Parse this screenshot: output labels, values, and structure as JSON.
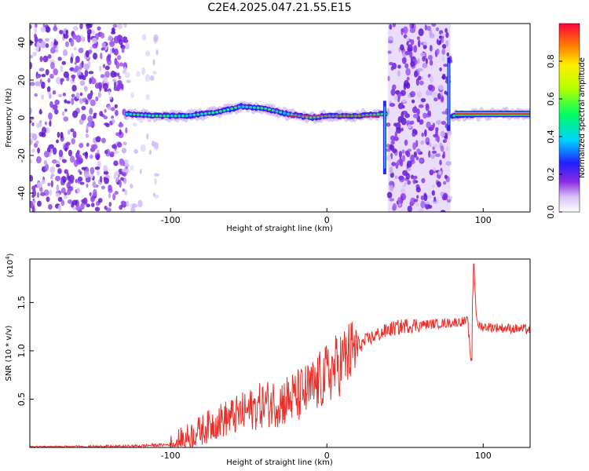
{
  "title": "C2E4.2025.047.21.55.E15",
  "chart_data": [
    {
      "type": "heatmap",
      "xlabel": "Height of straight line (km)",
      "ylabel": "Frequency (Hz)",
      "xlim": [
        -190,
        130
      ],
      "ylim": [
        -50,
        50
      ],
      "x_ticks": [
        -100,
        0,
        100
      ],
      "y_ticks": [
        -40,
        -20,
        0,
        20,
        40
      ],
      "noise_regions": [
        {
          "x": [
            -190,
            -128
          ],
          "f": [
            -50,
            50
          ],
          "level": "dense"
        },
        {
          "x": [
            -128,
            -108
          ],
          "f": [
            -50,
            50
          ],
          "level": "faint"
        },
        {
          "x": [
            39,
            79
          ],
          "f": [
            -50,
            50
          ],
          "level": "dense"
        }
      ],
      "signal_track": [
        {
          "x": -128,
          "f": 2
        },
        {
          "x": -110,
          "f": 1
        },
        {
          "x": -90,
          "f": 1
        },
        {
          "x": -70,
          "f": 3
        },
        {
          "x": -55,
          "f": 6
        },
        {
          "x": -40,
          "f": 5
        },
        {
          "x": -25,
          "f": 2
        },
        {
          "x": -10,
          "f": 0
        },
        {
          "x": 0,
          "f": 1
        },
        {
          "x": 20,
          "f": 1
        },
        {
          "x": 36,
          "f": 2
        },
        {
          "x": 80,
          "f": 1
        },
        {
          "x": 100,
          "f": 2
        },
        {
          "x": 130,
          "f": 2
        }
      ],
      "colorbar": {
        "label": "Normalized spectral amplitude",
        "ticks": [
          0.0,
          0.2,
          0.4,
          0.6,
          0.8
        ],
        "range": [
          0,
          1
        ]
      }
    },
    {
      "type": "line",
      "xlabel": "Height of straight line (km)",
      "ylabel": "SNR (10 * v/v)",
      "multiplier_label": "(x10",
      "multiplier_exp": "4",
      "xlim": [
        -190,
        130
      ],
      "ylim": [
        0,
        1.95
      ],
      "x_ticks": [
        -100,
        0,
        100
      ],
      "y_ticks": [
        0.5,
        1.0,
        1.5
      ],
      "series": [
        {
          "color": "#e8302a",
          "x": [
            -190,
            -130,
            -100,
            -90,
            -80,
            -70,
            -60,
            -50,
            -40,
            -30,
            -20,
            -10,
            0,
            10,
            20,
            30,
            40,
            50,
            60,
            70,
            80,
            90,
            92,
            94,
            96,
            100,
            110,
            120,
            130
          ],
          "y": [
            0.0,
            0.01,
            0.03,
            0.1,
            0.18,
            0.27,
            0.32,
            0.38,
            0.45,
            0.47,
            0.52,
            0.6,
            0.75,
            0.9,
            1.05,
            1.15,
            1.22,
            1.26,
            1.27,
            1.28,
            1.29,
            1.31,
            0.95,
            1.9,
            1.27,
            1.25,
            1.24,
            1.23,
            1.22
          ]
        }
      ]
    }
  ]
}
